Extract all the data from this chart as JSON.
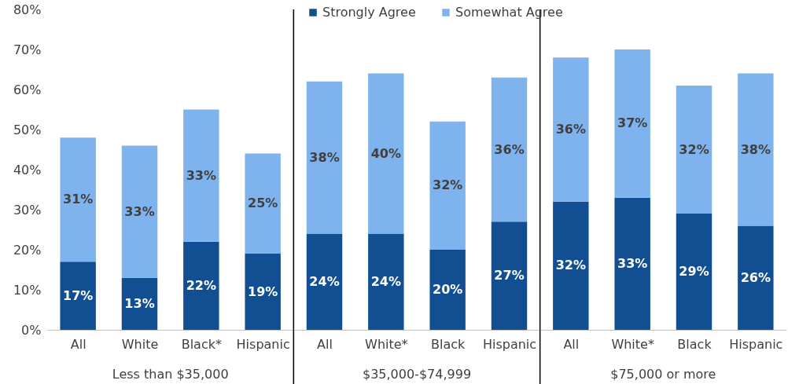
{
  "chart_data": {
    "type": "bar",
    "stacked": true,
    "categories": [
      "All",
      "White",
      "Black*",
      "Hispanic",
      "All",
      "White*",
      "Black",
      "Hispanic",
      "All",
      "White*",
      "Black",
      "Hispanic"
    ],
    "series": [
      {
        "name": "Strongly Agree",
        "color": "#114e92",
        "values": [
          17,
          13,
          22,
          19,
          24,
          24,
          20,
          27,
          32,
          33,
          29,
          26
        ],
        "value_labels": [
          "17%",
          "13%",
          "22%",
          "19%",
          "24%",
          "24%",
          "20%",
          "27%",
          "32%",
          "33%",
          "29%",
          "26%"
        ]
      },
      {
        "name": "Somewhat Agree",
        "color": "#7fb3ee",
        "values": [
          31,
          33,
          33,
          25,
          38,
          40,
          32,
          36,
          36,
          37,
          32,
          38
        ],
        "value_labels": [
          "31%",
          "33%",
          "33%",
          "25%",
          "38%",
          "40%",
          "32%",
          "36%",
          "36%",
          "37%",
          "32%",
          "38%"
        ]
      }
    ],
    "ylim": [
      0,
      80
    ],
    "yticks": [
      {
        "value": 0,
        "label": "0%"
      },
      {
        "value": 10,
        "label": "10%"
      },
      {
        "value": 20,
        "label": "20%"
      },
      {
        "value": 30,
        "label": "30%"
      },
      {
        "value": 40,
        "label": "40%"
      },
      {
        "value": 50,
        "label": "50%"
      },
      {
        "value": 60,
        "label": "60%"
      },
      {
        "value": 70,
        "label": "70%"
      },
      {
        "value": 80,
        "label": "80%"
      }
    ],
    "annotations": [
      "Less than $35,000",
      "$35,000-$74,999",
      "$75,000 or more"
    ],
    "legend": "top",
    "grid": false
  }
}
